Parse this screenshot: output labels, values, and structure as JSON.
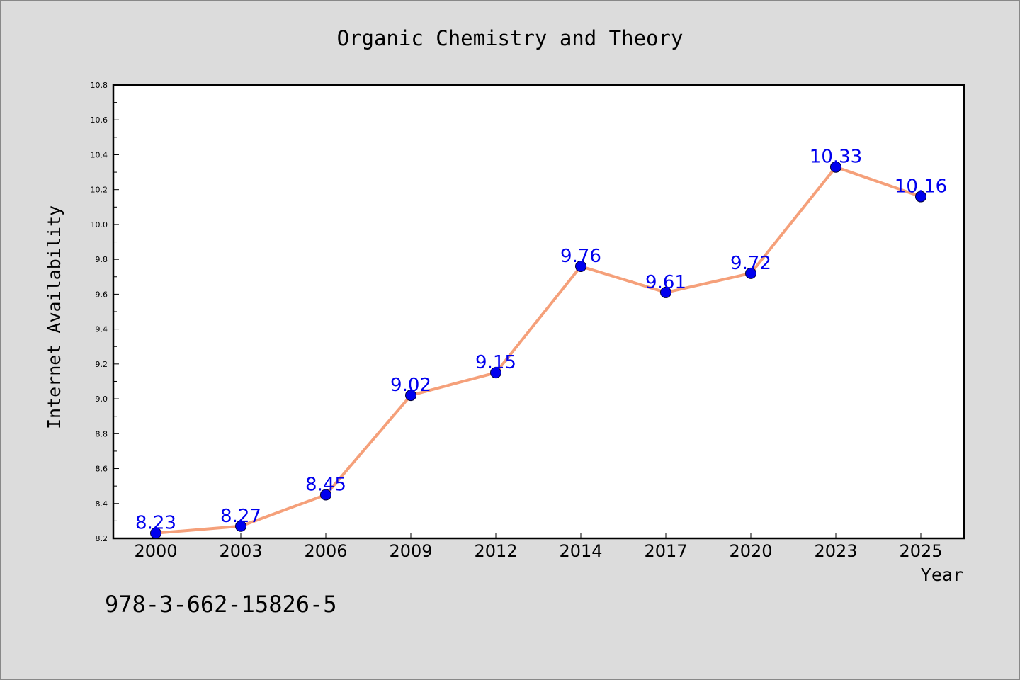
{
  "chart_data": {
    "type": "line",
    "title": "Organic Chemistry and Theory",
    "xlabel": "Year",
    "ylabel": "Internet Availability",
    "annotation": "978-3-662-15826-5",
    "categories": [
      "2000",
      "2003",
      "2006",
      "2009",
      "2012",
      "2014",
      "2017",
      "2020",
      "2023",
      "2025"
    ],
    "series": [
      {
        "values": [
          8.23,
          8.27,
          8.45,
          9.02,
          9.15,
          9.76,
          9.61,
          9.72,
          10.33,
          10.16
        ]
      }
    ],
    "data_labels": [
      "8.23",
      "8.27",
      "8.45",
      "9.02",
      "9.15",
      "9.76",
      "9.61",
      "9.72",
      "10.33",
      "10.16"
    ],
    "ylim": [
      8.2,
      10.8
    ],
    "yticks": [
      "8.2",
      "8.4",
      "8.6",
      "8.8",
      "9.0",
      "9.2",
      "9.4",
      "9.6",
      "9.8",
      "10.0",
      "10.2",
      "10.4",
      "10.6",
      "10.8"
    ],
    "grid": false,
    "legend": "none",
    "colors": {
      "line": "#f5a07a",
      "marker_fill": "#0000ee",
      "marker_edge": "#000033",
      "data_label": "#0000ee",
      "background": "#dcdcdc",
      "plot_background": "#ffffff"
    }
  }
}
